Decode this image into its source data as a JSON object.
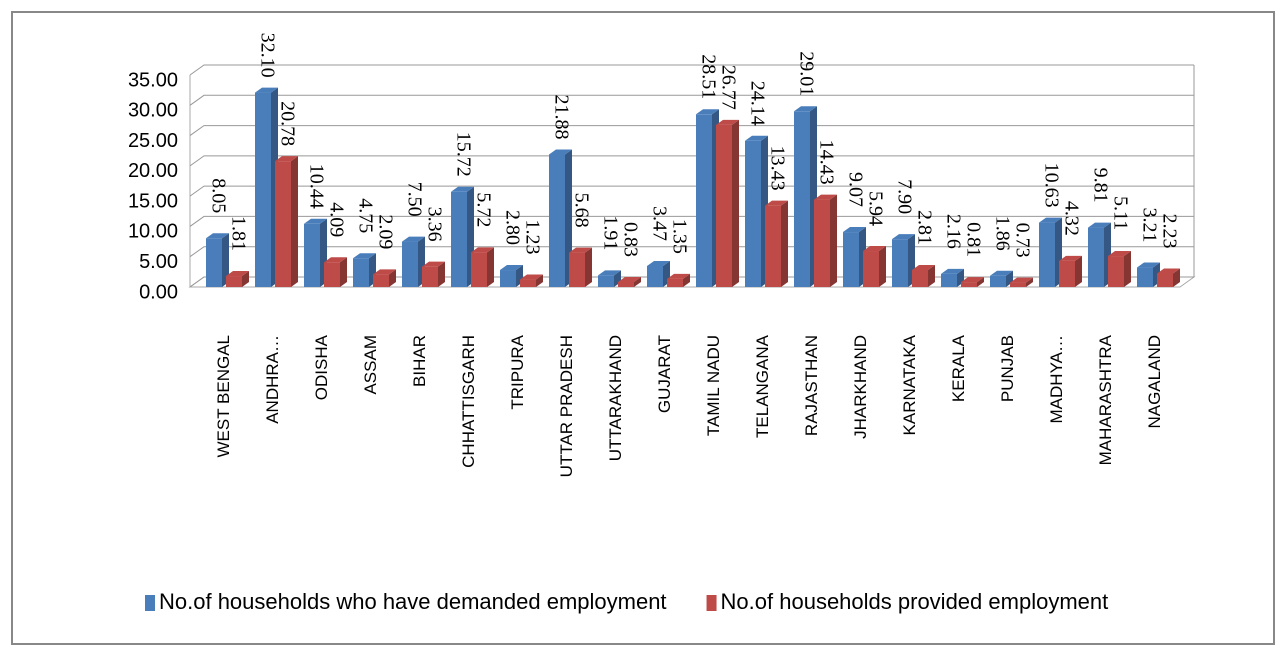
{
  "chart_data": {
    "type": "bar",
    "categories": [
      "WEST BENGAL",
      "ANDHRA…",
      "ODISHA",
      "ASSAM",
      "BIHAR",
      "CHHATTISGARH",
      "TRIPURA",
      "UTTAR PRADESH",
      "UTTARAKHAND",
      "GUJARAT",
      "TAMIL NADU",
      "TELANGANA",
      "RAJASTHAN",
      "JHARKHAND",
      "KARNATAKA",
      "KERALA",
      "PUNJAB",
      "MADHYA…",
      "MAHARASHTRA",
      "NAGALAND"
    ],
    "series": [
      {
        "name": "No.of households who have demanded employment",
        "color": "#4a7ebb",
        "values": [
          8.05,
          32.1,
          10.44,
          4.75,
          7.5,
          15.72,
          2.8,
          21.88,
          1.91,
          3.47,
          28.51,
          24.14,
          29.01,
          9.07,
          7.9,
          2.16,
          1.86,
          10.63,
          9.81,
          3.21
        ],
        "value_labels": [
          "8.05",
          "32.10",
          "10.44",
          "4.75",
          "7.50",
          "15.72",
          "2.80",
          "21.88",
          "1.91",
          "3.47",
          "28.51",
          "24.14",
          "29.01",
          "9.07",
          "7.90",
          "2.16",
          "1.86",
          "10.63",
          "9.81",
          "3.21"
        ]
      },
      {
        "name": "No.of households provided employment",
        "color": "#be4b48",
        "values": [
          1.81,
          20.78,
          4.09,
          2.09,
          3.36,
          5.72,
          1.23,
          5.68,
          0.83,
          1.35,
          26.77,
          13.43,
          14.43,
          5.94,
          2.81,
          0.81,
          0.73,
          4.32,
          5.11,
          2.23
        ],
        "value_labels": [
          "1.81",
          "20.78",
          "4.09",
          "2.09",
          "3.36",
          "5.72",
          "1.23",
          "5.68",
          "0.83",
          "1.35",
          "26.77",
          "13.43",
          "14.43",
          "5.94",
          "2.81",
          "0.81",
          "0.73",
          "4.32",
          "5.11",
          "2.23"
        ]
      }
    ],
    "ylim": [
      0,
      35
    ],
    "yticks": [
      {
        "value": 0,
        "label": "0.00"
      },
      {
        "value": 5,
        "label": "5.00"
      },
      {
        "value": 10,
        "label": "10.00"
      },
      {
        "value": 15,
        "label": "15.00"
      },
      {
        "value": 20,
        "label": "20.00"
      },
      {
        "value": 25,
        "label": "25.00"
      },
      {
        "value": 30,
        "label": "30.00"
      },
      {
        "value": 35,
        "label": "35.00"
      }
    ],
    "grid": true,
    "legend": "bottom"
  }
}
